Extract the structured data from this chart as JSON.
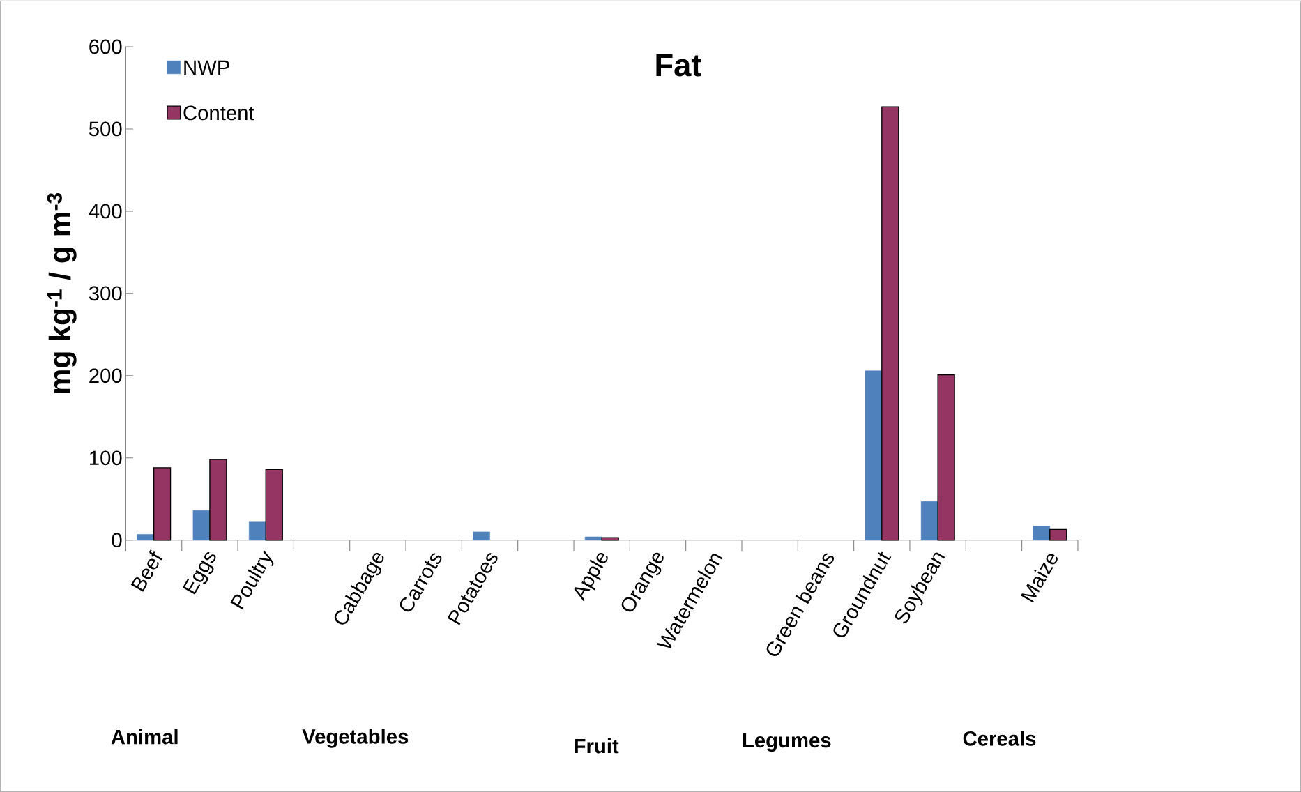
{
  "chart_data": {
    "type": "bar",
    "title": "Fat",
    "ylabel": "mg kg$^{-1}$ / g m$^{-3}$",
    "categories": [
      "Beef",
      "Eggs",
      "Poultry",
      null,
      "Cabbage",
      "Carrots",
      "Potatoes",
      null,
      "Apple",
      "Orange",
      "Watermelon",
      null,
      "Green beans",
      "Groundnut",
      "Soybean",
      null,
      "Maize"
    ],
    "series": [
      {
        "name": "NWP",
        "color": "#4f81bd",
        "values": [
          7,
          36,
          22,
          null,
          null,
          null,
          10,
          null,
          4,
          null,
          null,
          null,
          null,
          206,
          47,
          null,
          17
        ]
      },
      {
        "name": "Content",
        "color": "#953563",
        "values": [
          88,
          98,
          86,
          null,
          null,
          null,
          null,
          null,
          3,
          null,
          null,
          null,
          null,
          527,
          201,
          null,
          13
        ]
      }
    ],
    "ylim": [
      0,
      600
    ],
    "yticks": [
      0,
      100,
      200,
      300,
      400,
      500,
      600
    ],
    "grid": false,
    "legend": "top left",
    "annotations": [
      "Animal",
      "Vegetables",
      "Fruit",
      "Legumes",
      "Cereals"
    ]
  }
}
